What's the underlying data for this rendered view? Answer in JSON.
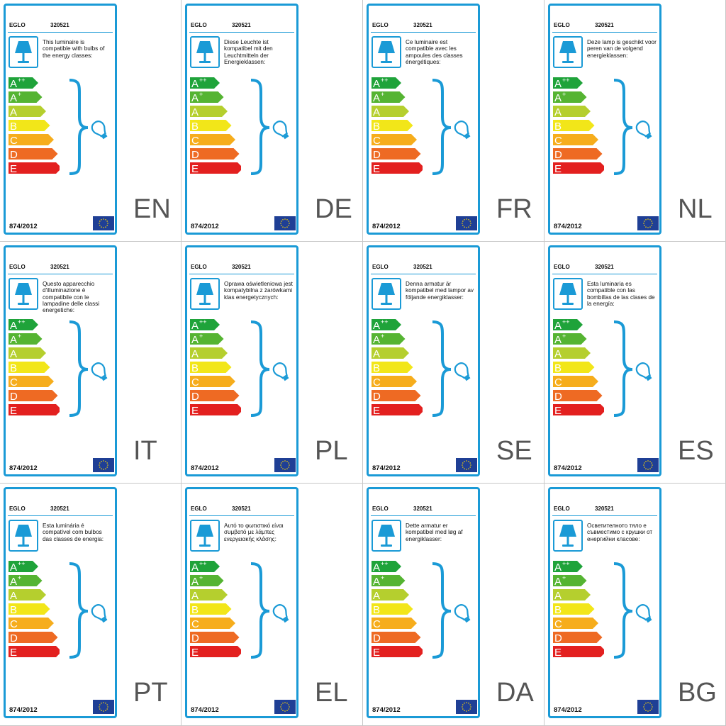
{
  "labels": [
    {
      "brand": "EGLO",
      "code": "320521",
      "text": "This luminaire is compatible with bulbs of the energy classes:",
      "regulation": "874/2012",
      "lang": "EN"
    },
    {
      "brand": "EGLO",
      "code": "320521",
      "text": "Diese Leuchte ist kompatibel mit den Leuchtmitteln der Energieklassen:",
      "regulation": "874/2012",
      "lang": "DE"
    },
    {
      "brand": "EGLO",
      "code": "320521",
      "text": "Ce luminaire est compatible avec les ampoules des classes énergétiques:",
      "regulation": "874/2012",
      "lang": "FR"
    },
    {
      "brand": "EGLO",
      "code": "320521",
      "text": "Deze lamp is geschikt voor peren van de volgend energieklassen:",
      "regulation": "874/2012",
      "lang": "NL"
    },
    {
      "brand": "EGLO",
      "code": "320521",
      "text": "Questo apparecchio d'illuminazione è compatibile con le lampadine delle classi energetiche:",
      "regulation": "874/2012",
      "lang": "IT"
    },
    {
      "brand": "EGLO",
      "code": "320521",
      "text": "Oprawa oświetleniowa jest kompatybilna z żarówkami klas energetycznych:",
      "regulation": "874/2012",
      "lang": "PL"
    },
    {
      "brand": "EGLO",
      "code": "320521",
      "text": "Denna armatur är kompatibel med lampor av följande energiklasser:",
      "regulation": "874/2012",
      "lang": "SE"
    },
    {
      "brand": "EGLO",
      "code": "320521",
      "text": "Esta luminaria es compatible con las bombillas de las clases de la energía:",
      "regulation": "874/2012",
      "lang": "ES"
    },
    {
      "brand": "EGLO",
      "code": "320521",
      "text": "Esta luminária é compatível com bulbos das classes de energia:",
      "regulation": "874/2012",
      "lang": "PT"
    },
    {
      "brand": "EGLO",
      "code": "320521",
      "text": "Αυτό το φωτιστικό είναι συμβατό με λάμπες ενεργειακής κλάσης:",
      "regulation": "874/2012",
      "lang": "EL"
    },
    {
      "brand": "EGLO",
      "code": "320521",
      "text": "Dette armatur er kompatibel med løg af energiklasser:",
      "regulation": "874/2012",
      "lang": "DA"
    },
    {
      "brand": "EGLO",
      "code": "320521",
      "text": "Осветителното тяло е съвместимо с крушки от енергийни класове:",
      "regulation": "874/2012",
      "lang": "BG"
    }
  ],
  "energy_classes": [
    {
      "letter": "A",
      "sup": "++",
      "color": "#1fa33a"
    },
    {
      "letter": "A",
      "sup": "+",
      "color": "#55b432"
    },
    {
      "letter": "A",
      "sup": "",
      "color": "#b5cf2e"
    },
    {
      "letter": "B",
      "sup": "",
      "color": "#f2e619"
    },
    {
      "letter": "C",
      "sup": "",
      "color": "#f6ad1c"
    },
    {
      "letter": "D",
      "sup": "",
      "color": "#ee6a23"
    },
    {
      "letter": "E",
      "sup": "",
      "color": "#e3201f"
    }
  ],
  "colors": {
    "border": "#1a9ad6",
    "eu_flag": "#1f3f95",
    "eu_stars": "#ffd500"
  },
  "icons": {
    "lamp": "table-lamp-icon",
    "bulb": "light-bulb-icon",
    "flag": "eu-flag-icon"
  }
}
